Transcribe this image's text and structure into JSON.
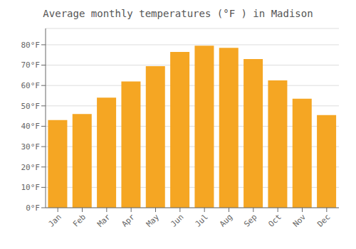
{
  "chart_data": {
    "type": "bar",
    "title": "Average monthly temperatures (°F ) in Madison",
    "categories": [
      "Jan",
      "Feb",
      "Mar",
      "Apr",
      "May",
      "Jun",
      "Jul",
      "Aug",
      "Sep",
      "Oct",
      "Nov",
      "Dec"
    ],
    "values": [
      43.0,
      46.0,
      54.0,
      62.0,
      69.5,
      76.5,
      79.5,
      78.5,
      73.0,
      62.5,
      53.5,
      45.5
    ],
    "color": "#F5A623",
    "ylim": [
      0,
      88
    ],
    "yticks": [
      {
        "value": 0,
        "label": "0°F"
      },
      {
        "value": 10,
        "label": "10°F"
      },
      {
        "value": 20,
        "label": "20°F"
      },
      {
        "value": 30,
        "label": "30°F"
      },
      {
        "value": 40,
        "label": "40°F"
      },
      {
        "value": 50,
        "label": "50°F"
      },
      {
        "value": 60,
        "label": "60°F"
      },
      {
        "value": 70,
        "label": "70°F"
      },
      {
        "value": 80,
        "label": "80°F"
      }
    ],
    "grid": true
  }
}
